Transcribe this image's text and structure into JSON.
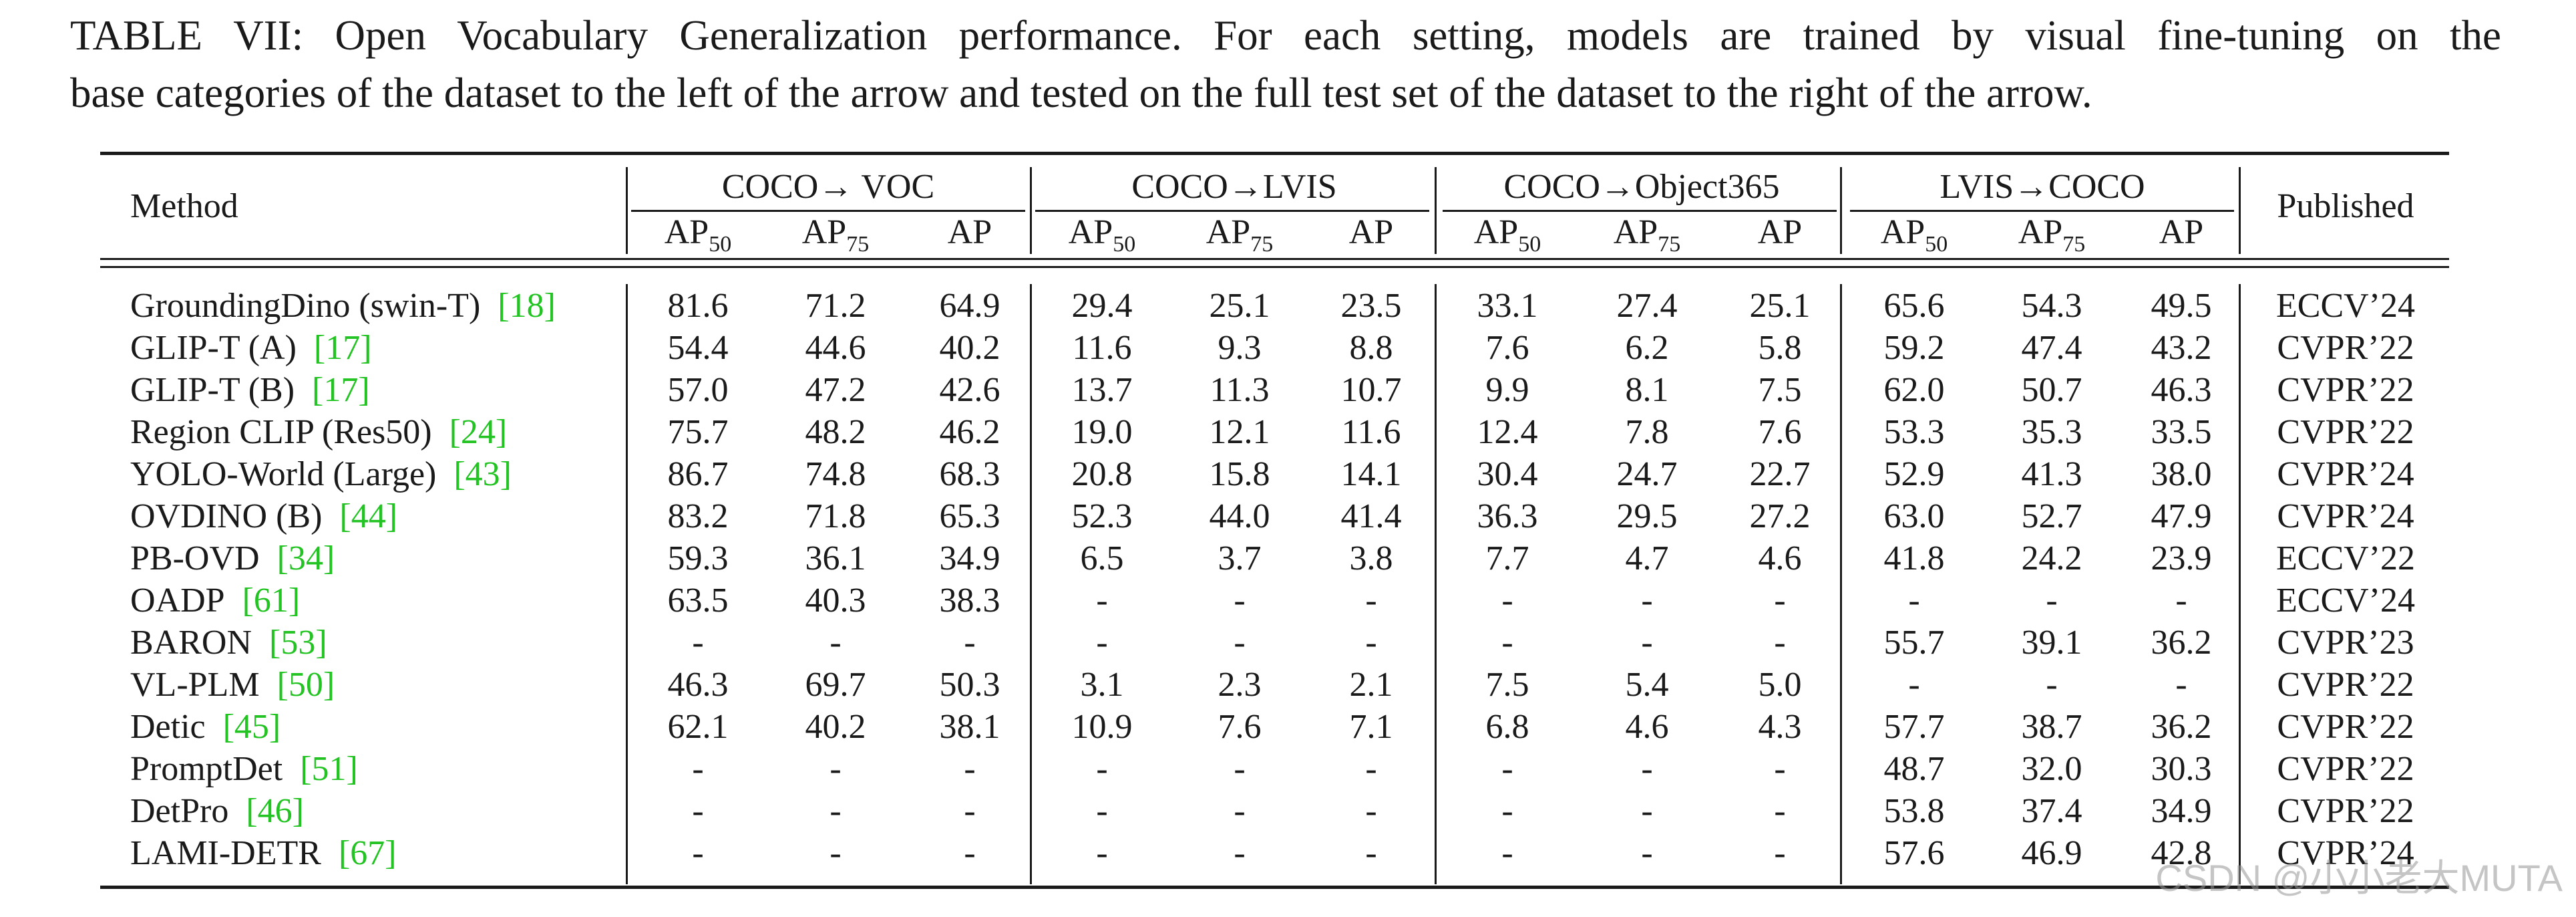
{
  "caption": {
    "line1": "TABLE VII: Open Vocabulary Generalization performance. For each setting, models are trained by visual fine-tuning on the",
    "line2": "base categories of the dataset to the left of the arrow and tested on the full test set of the dataset to the right of the arrow."
  },
  "header": {
    "method": "Method",
    "published": "Published",
    "groups": [
      "COCO→ VOC",
      "COCO→LVIS",
      "COCO→Object365",
      "LVIS→COCO"
    ],
    "metrics": [
      {
        "base": "AP",
        "sub": "50"
      },
      {
        "base": "AP",
        "sub": "75"
      },
      {
        "base": "AP",
        "sub": ""
      }
    ]
  },
  "rows": [
    {
      "name": "GroundingDino (swin-T)",
      "ref": "[18]",
      "values": [
        "81.6",
        "71.2",
        "64.9",
        "29.4",
        "25.1",
        "23.5",
        "33.1",
        "27.4",
        "25.1",
        "65.6",
        "54.3",
        "49.5"
      ],
      "published": "ECCV’24"
    },
    {
      "name": "GLIP-T (A)",
      "ref": "[17]",
      "values": [
        "54.4",
        "44.6",
        "40.2",
        "11.6",
        "9.3",
        "8.8",
        "7.6",
        "6.2",
        "5.8",
        "59.2",
        "47.4",
        "43.2"
      ],
      "published": "CVPR’22"
    },
    {
      "name": "GLIP-T (B)",
      "ref": "[17]",
      "values": [
        "57.0",
        "47.2",
        "42.6",
        "13.7",
        "11.3",
        "10.7",
        "9.9",
        "8.1",
        "7.5",
        "62.0",
        "50.7",
        "46.3"
      ],
      "published": "CVPR’22"
    },
    {
      "name": "Region CLIP (Res50)",
      "ref": "[24]",
      "values": [
        "75.7",
        "48.2",
        "46.2",
        "19.0",
        "12.1",
        "11.6",
        "12.4",
        "7.8",
        "7.6",
        "53.3",
        "35.3",
        "33.5"
      ],
      "published": "CVPR’22"
    },
    {
      "name": "YOLO-World (Large)",
      "ref": "[43]",
      "values": [
        "86.7",
        "74.8",
        "68.3",
        "20.8",
        "15.8",
        "14.1",
        "30.4",
        "24.7",
        "22.7",
        "52.9",
        "41.3",
        "38.0"
      ],
      "published": "CVPR’24"
    },
    {
      "name": "OVDINO (B)",
      "ref": "[44]",
      "values": [
        "83.2",
        "71.8",
        "65.3",
        "52.3",
        "44.0",
        "41.4",
        "36.3",
        "29.5",
        "27.2",
        "63.0",
        "52.7",
        "47.9"
      ],
      "published": "CVPR’24"
    },
    {
      "name": "PB-OVD",
      "ref": "[34]",
      "values": [
        "59.3",
        "36.1",
        "34.9",
        "6.5",
        "3.7",
        "3.8",
        "7.7",
        "4.7",
        "4.6",
        "41.8",
        "24.2",
        "23.9"
      ],
      "published": "ECCV’22"
    },
    {
      "name": "OADP",
      "ref": "[61]",
      "values": [
        "63.5",
        "40.3",
        "38.3",
        "-",
        "-",
        "-",
        "-",
        "-",
        "-",
        "-",
        "-",
        "-"
      ],
      "published": "ECCV’24"
    },
    {
      "name": "BARON",
      "ref": "[53]",
      "values": [
        "-",
        "-",
        "-",
        "-",
        "-",
        "-",
        "-",
        "-",
        "-",
        "55.7",
        "39.1",
        "36.2"
      ],
      "published": "CVPR’23"
    },
    {
      "name": "VL-PLM",
      "ref": "[50]",
      "values": [
        "46.3",
        "69.7",
        "50.3",
        "3.1",
        "2.3",
        "2.1",
        "7.5",
        "5.4",
        "5.0",
        "-",
        "-",
        "-"
      ],
      "published": "CVPR’22"
    },
    {
      "name": "Detic",
      "ref": "[45]",
      "values": [
        "62.1",
        "40.2",
        "38.1",
        "10.9",
        "7.6",
        "7.1",
        "6.8",
        "4.6",
        "4.3",
        "57.7",
        "38.7",
        "36.2"
      ],
      "published": "CVPR’22"
    },
    {
      "name": "PromptDet",
      "ref": "[51]",
      "values": [
        "-",
        "-",
        "-",
        "-",
        "-",
        "-",
        "-",
        "-",
        "-",
        "48.7",
        "32.0",
        "30.3"
      ],
      "published": "CVPR’22"
    },
    {
      "name": "DetPro",
      "ref": "[46]",
      "values": [
        "-",
        "-",
        "-",
        "-",
        "-",
        "-",
        "-",
        "-",
        "-",
        "53.8",
        "37.4",
        "34.9"
      ],
      "published": "CVPR’22"
    },
    {
      "name": "LAMI-DETR",
      "ref": "[67]",
      "values": [
        "-",
        "-",
        "-",
        "-",
        "-",
        "-",
        "-",
        "-",
        "-",
        "57.6",
        "46.9",
        "42.8"
      ],
      "published": "CVPR’24"
    }
  ],
  "watermark": "CSDN @小小老大MUTA"
}
